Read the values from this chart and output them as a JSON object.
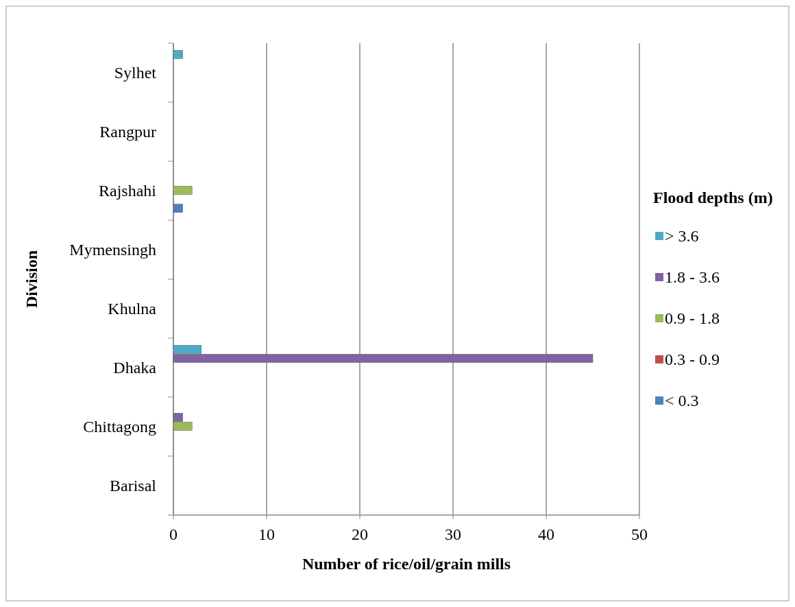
{
  "chart_data": {
    "type": "bar",
    "orientation": "horizontal",
    "xlabel": "Number of rice/oil/grain mills",
    "ylabel": "Division",
    "legend_title": "Flood depths (m)",
    "categories": [
      "Sylhet",
      "Rangpur",
      "Rajshahi",
      "Mymensingh",
      "Khulna",
      "Dhaka",
      "Chittagong",
      "Barisal"
    ],
    "series": [
      {
        "name": "> 3.6",
        "color": "#4bacc6",
        "values": [
          1,
          0,
          0,
          0,
          0,
          3,
          0,
          0
        ]
      },
      {
        "name": "1.8 - 3.6",
        "color": "#8064a2",
        "values": [
          0,
          0,
          0,
          0,
          0,
          45,
          1,
          0
        ]
      },
      {
        "name": "0.9 - 1.8",
        "color": "#9bbb59",
        "values": [
          0,
          0,
          2,
          0,
          0,
          0,
          2,
          0
        ]
      },
      {
        "name": "0.3 - 0.9",
        "color": "#c0504d",
        "values": [
          0,
          0,
          0,
          0,
          0,
          0,
          0,
          0
        ]
      },
      {
        "name": "< 0.3",
        "color": "#4f81bd",
        "values": [
          0,
          0,
          1,
          0,
          0,
          0,
          0,
          0
        ]
      }
    ],
    "xlim": [
      0,
      50
    ],
    "xticks": [
      0,
      10,
      20,
      30,
      40,
      50
    ],
    "grid": "x",
    "legend": "right"
  }
}
